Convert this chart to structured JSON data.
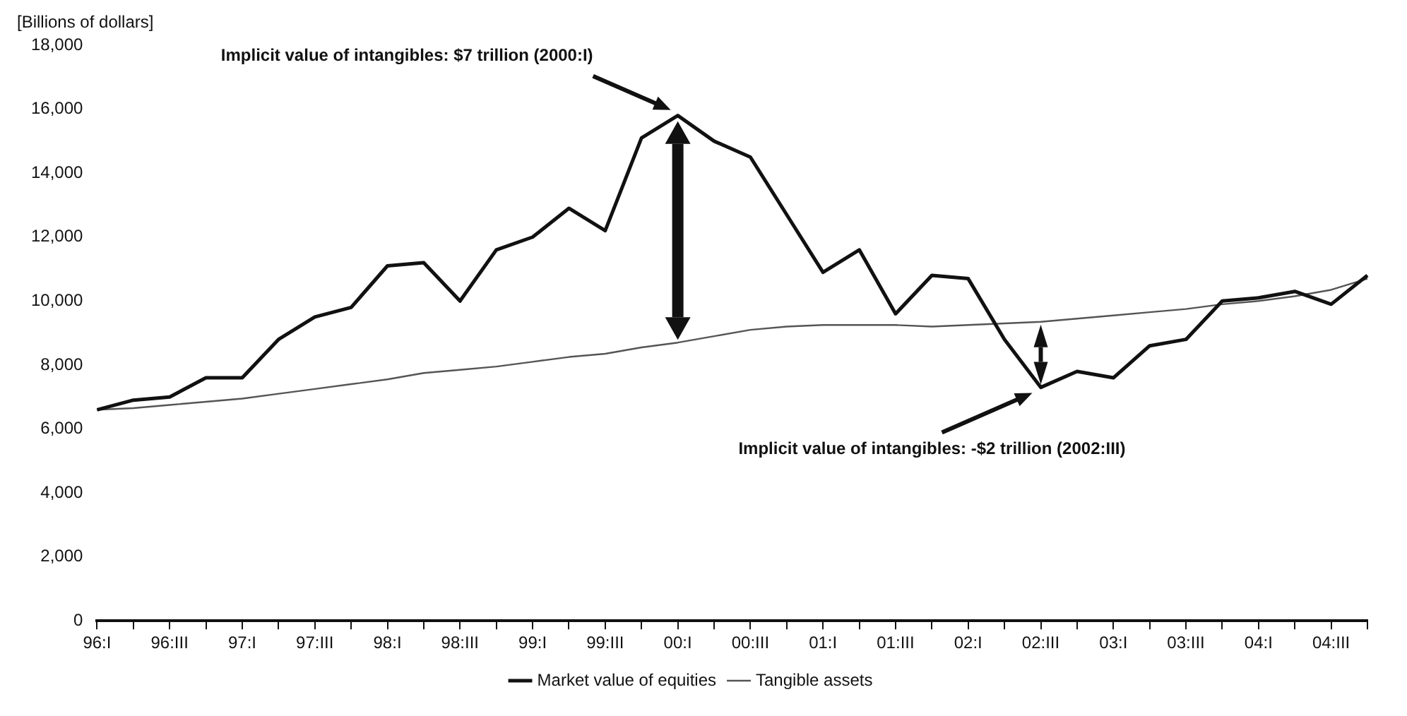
{
  "chart_data": {
    "type": "line",
    "ylabel": "[Billions of dollars]",
    "categories": [
      "96:I",
      null,
      "96:III",
      null,
      "97:I",
      null,
      "97:III",
      null,
      "98:I",
      null,
      "98:III",
      null,
      "99:I",
      null,
      "99:III",
      null,
      "00:I",
      null,
      "00:III",
      null,
      "01:I",
      null,
      "01:III",
      null,
      "02:I",
      null,
      "02:III",
      null,
      "03:I",
      null,
      "03:III",
      null,
      "04:I",
      null,
      "04:III",
      null
    ],
    "series": [
      {
        "name": "Market value of equities",
        "color": "#111111",
        "values": [
          6600,
          6900,
          7000,
          7600,
          7600,
          8800,
          9500,
          9800,
          11100,
          11200,
          10000,
          11600,
          12000,
          12900,
          12200,
          15100,
          15800,
          15000,
          14500,
          12700,
          10900,
          11600,
          9600,
          10800,
          10700,
          8800,
          7300,
          7800,
          7600,
          8600,
          8800,
          10000,
          10100,
          10300,
          9900,
          10800
        ]
      },
      {
        "name": "Tangible assets",
        "color": "#555555",
        "values": [
          6600,
          6650,
          6750,
          6850,
          6950,
          7100,
          7250,
          7400,
          7550,
          7750,
          7850,
          7950,
          8100,
          8250,
          8350,
          8550,
          8700,
          8900,
          9100,
          9200,
          9250,
          9250,
          9250,
          9200,
          9250,
          9300,
          9350,
          9450,
          9550,
          9650,
          9750,
          9900,
          10000,
          10150,
          10350,
          10700
        ]
      }
    ],
    "ylim": [
      0,
      18000
    ],
    "yticks": [
      0,
      {
        "value": 2000,
        "label": "2,000"
      },
      {
        "value": 4000,
        "label": "4,000"
      },
      {
        "value": 6000,
        "label": "6,000"
      },
      {
        "value": 8000,
        "label": "8,000"
      },
      {
        "value": 10000,
        "label": "10,000"
      },
      {
        "value": 12000,
        "label": "12,000"
      },
      {
        "value": 14000,
        "label": "14,000"
      },
      {
        "value": 16000,
        "label": "16,000"
      },
      {
        "value": 18000,
        "label": "18,000"
      }
    ],
    "annotations": [
      "Implicit value of intangibles: $7 trillion (2000:I)",
      "Implicit value of intangibles: -$2 trillion (2002:III)"
    ],
    "grid": false,
    "legend": "bottom",
    "marker": "none"
  }
}
